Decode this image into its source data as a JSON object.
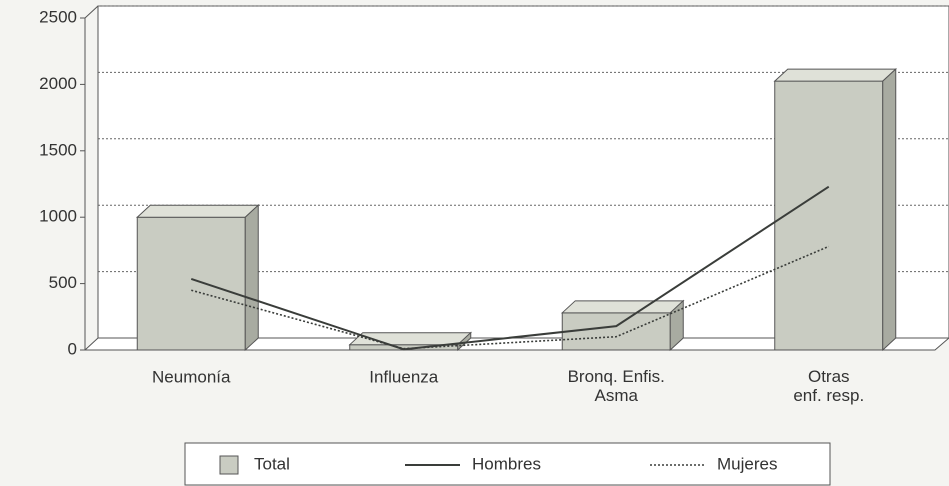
{
  "chart_data": {
    "type": "bar_line",
    "categories": [
      "Neumonía",
      "Influenza",
      "Bronq. Enfis.\nAsma",
      "Otras\nenf. resp."
    ],
    "series": [
      {
        "name": "Total",
        "type": "bar",
        "color": "#c9ccc2",
        "values": [
          1000,
          40,
          280,
          2025
        ]
      },
      {
        "name": "Hombres",
        "type": "line",
        "color": "#3a3d3a",
        "dash": "solid",
        "values": [
          535,
          5,
          180,
          1230
        ]
      },
      {
        "name": "Mujeres",
        "type": "line",
        "color": "#3a3d3a",
        "dash": "dotted",
        "values": [
          450,
          10,
          100,
          780
        ]
      }
    ],
    "ylim": [
      0,
      2500
    ],
    "yticks": [
      0,
      500,
      1000,
      1500,
      2000,
      2500
    ],
    "grid": true
  }
}
